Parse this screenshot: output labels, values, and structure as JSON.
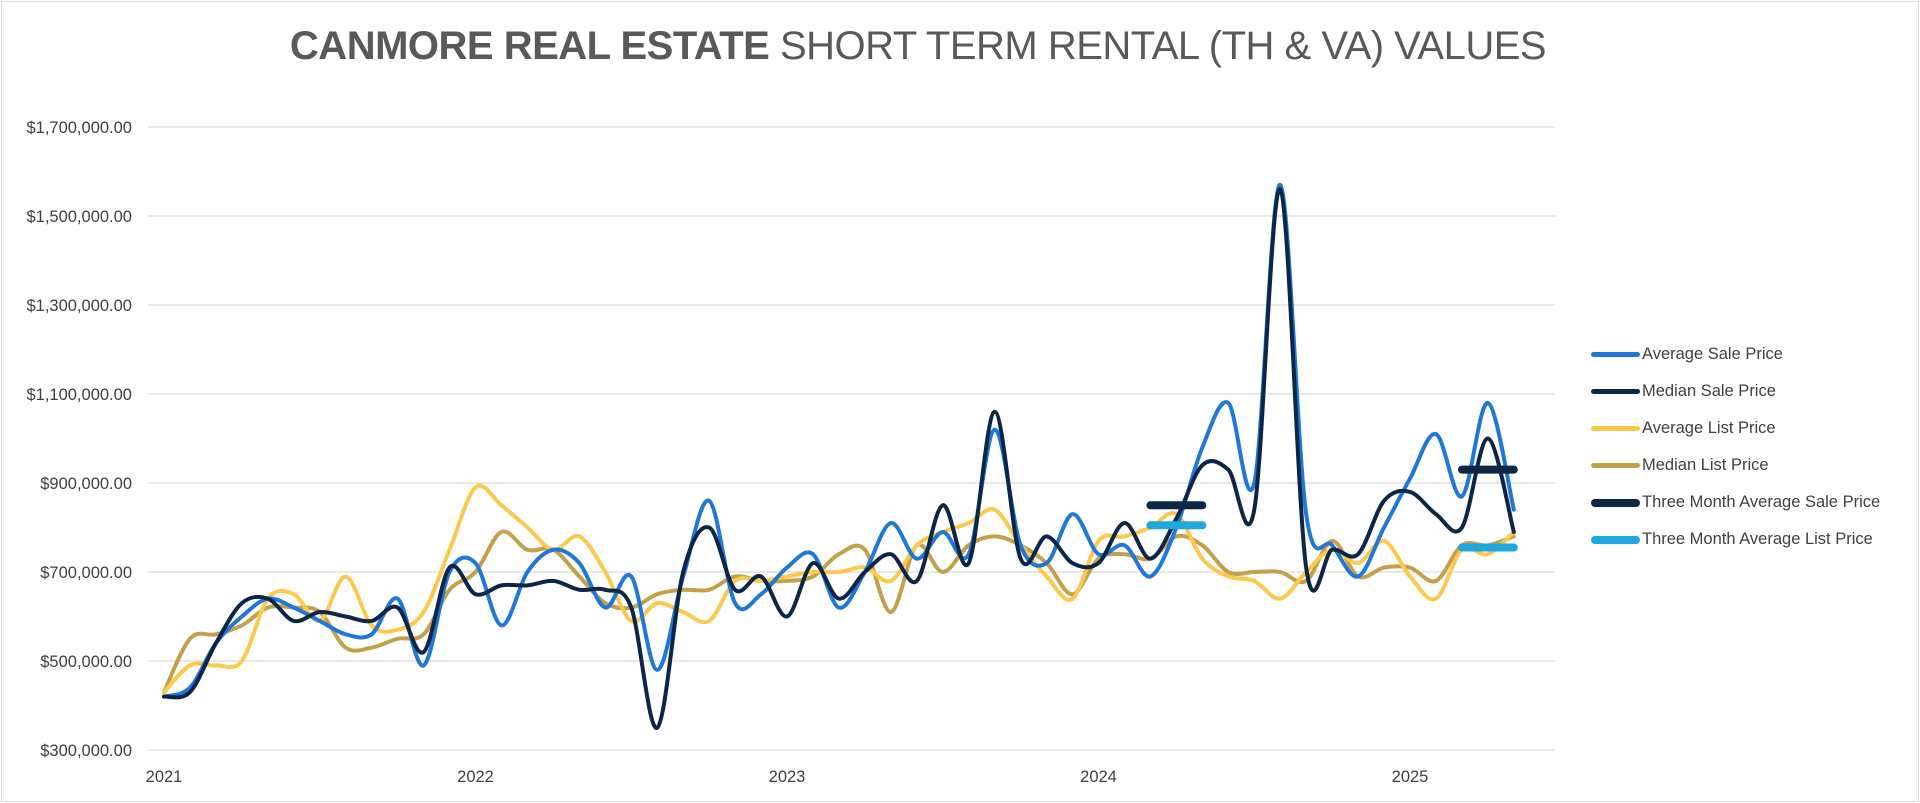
{
  "title": {
    "bold": "CANMORE REAL ESTATE",
    "rest": "SHORT TERM RENTAL (TH & VA) VALUES"
  },
  "chart_data": {
    "type": "line",
    "title": "CANMORE REAL ESTATE SHORT TERM RENTAL (TH & VA) VALUES",
    "xlabel": "",
    "ylabel": "",
    "x_ticks": [
      "2021",
      "2022",
      "2023",
      "2024",
      "2025"
    ],
    "y_ticks": [
      300000,
      500000,
      700000,
      900000,
      1100000,
      1300000,
      1500000,
      1700000
    ],
    "y_tick_labels": [
      "$300,000.00",
      "$500,000.00",
      "$700,000.00",
      "$900,000.00",
      "$1,100,000.00",
      "$1,300,000.00",
      "$1,500,000.00",
      "$1,700,000.00"
    ],
    "ylim": [
      300000,
      1700000
    ],
    "grid": "horizontal",
    "legend_position": "right",
    "x": [
      "2021-01",
      "2021-02",
      "2021-03",
      "2021-04",
      "2021-05",
      "2021-06",
      "2021-07",
      "2021-08",
      "2021-09",
      "2021-10",
      "2021-11",
      "2021-12",
      "2022-01",
      "2022-02",
      "2022-03",
      "2022-04",
      "2022-05",
      "2022-06",
      "2022-07",
      "2022-08",
      "2022-09",
      "2022-10",
      "2022-11",
      "2022-12",
      "2023-01",
      "2023-02",
      "2023-03",
      "2023-04",
      "2023-05",
      "2023-06",
      "2023-07",
      "2023-08",
      "2023-09",
      "2023-10",
      "2023-11",
      "2023-12",
      "2024-01",
      "2024-02",
      "2024-03",
      "2024-04",
      "2024-05",
      "2024-06",
      "2024-07",
      "2024-08",
      "2024-09",
      "2024-10",
      "2024-11",
      "2024-12",
      "2025-01",
      "2025-02",
      "2025-03",
      "2025-04",
      "2025-05"
    ],
    "series": [
      {
        "name": "Average Sale Price",
        "color": "#1f78d8",
        "width": 4,
        "values": [
          420000,
          440000,
          540000,
          600000,
          640000,
          620000,
          590000,
          560000,
          560000,
          640000,
          490000,
          700000,
          720000,
          580000,
          700000,
          750000,
          720000,
          620000,
          690000,
          480000,
          690000,
          860000,
          630000,
          650000,
          710000,
          740000,
          620000,
          700000,
          810000,
          730000,
          790000,
          740000,
          1020000,
          760000,
          720000,
          830000,
          740000,
          760000,
          690000,
          800000,
          980000,
          1080000,
          900000,
          1570000,
          830000,
          760000,
          690000,
          800000,
          910000,
          1010000,
          870000,
          1080000,
          840000
        ]
      },
      {
        "name": "Median Sale Price",
        "color": "#0d2547",
        "width": 4,
        "values": [
          420000,
          430000,
          540000,
          630000,
          640000,
          590000,
          610000,
          600000,
          590000,
          620000,
          520000,
          710000,
          650000,
          670000,
          670000,
          680000,
          660000,
          660000,
          620000,
          350000,
          700000,
          800000,
          660000,
          690000,
          600000,
          720000,
          640000,
          700000,
          740000,
          680000,
          850000,
          720000,
          1060000,
          730000,
          780000,
          720000,
          720000,
          810000,
          730000,
          820000,
          940000,
          930000,
          840000,
          1560000,
          710000,
          750000,
          740000,
          860000,
          880000,
          830000,
          800000,
          1000000,
          790000
        ]
      },
      {
        "name": "Average List Price",
        "color": "#fcc94d",
        "width": 4,
        "values": [
          430000,
          490000,
          490000,
          500000,
          640000,
          650000,
          590000,
          690000,
          580000,
          570000,
          610000,
          750000,
          890000,
          850000,
          800000,
          750000,
          780000,
          700000,
          590000,
          630000,
          610000,
          590000,
          680000,
          680000,
          690000,
          700000,
          700000,
          710000,
          680000,
          760000,
          790000,
          810000,
          840000,
          760000,
          690000,
          640000,
          770000,
          780000,
          800000,
          830000,
          730000,
          690000,
          680000,
          640000,
          700000,
          750000,
          720000,
          770000,
          690000,
          640000,
          750000,
          740000,
          790000
        ]
      },
      {
        "name": "Median List Price",
        "color": "#c4a04b",
        "width": 4,
        "values": [
          430000,
          550000,
          560000,
          580000,
          620000,
          620000,
          610000,
          530000,
          530000,
          550000,
          560000,
          660000,
          700000,
          790000,
          750000,
          750000,
          690000,
          630000,
          620000,
          650000,
          660000,
          660000,
          690000,
          680000,
          680000,
          690000,
          740000,
          750000,
          610000,
          760000,
          700000,
          760000,
          780000,
          760000,
          720000,
          650000,
          730000,
          740000,
          730000,
          780000,
          760000,
          700000,
          700000,
          700000,
          680000,
          770000,
          690000,
          710000,
          710000,
          680000,
          760000,
          760000,
          780000
        ]
      }
    ],
    "three_month_averages": [
      {
        "name": "Three Month Average Sale Price",
        "color": "#0d2547",
        "segments": [
          {
            "x_start": "2024-03",
            "x_end": "2024-05",
            "value": 850000
          },
          {
            "x_start": "2025-03",
            "x_end": "2025-05",
            "value": 930000
          }
        ]
      },
      {
        "name": "Three Month Average List Price",
        "color": "#1fa7e0",
        "segments": [
          {
            "x_start": "2024-03",
            "x_end": "2024-05",
            "value": 805000
          },
          {
            "x_start": "2025-03",
            "x_end": "2025-05",
            "value": 755000
          }
        ]
      }
    ]
  }
}
